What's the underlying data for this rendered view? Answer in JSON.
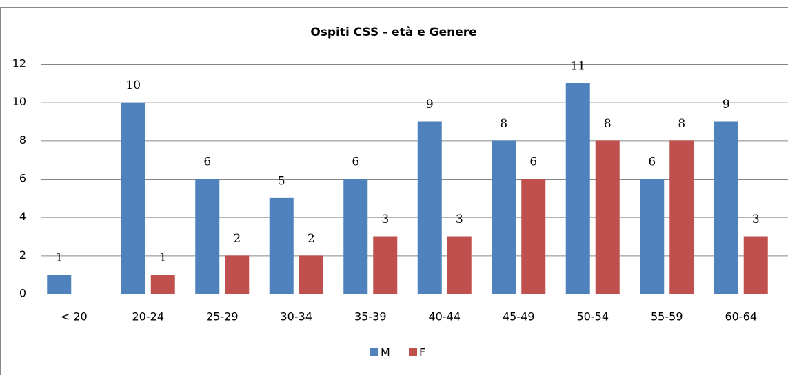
{
  "chart_data": {
    "type": "bar",
    "title": "Ospiti CSS - età e Genere",
    "categories": [
      "< 20",
      "20-24",
      "25-29",
      "30-34",
      "35-39",
      "40-44",
      "45-49",
      "50-54",
      "55-59",
      "60-64"
    ],
    "series": [
      {
        "name": "M",
        "color": "#4f81bd",
        "values": [
          1,
          10,
          6,
          5,
          6,
          9,
          8,
          11,
          6,
          9
        ]
      },
      {
        "name": "F",
        "color": "#c0504d",
        "values": [
          null,
          1,
          2,
          2,
          3,
          3,
          6,
          8,
          8,
          3
        ]
      }
    ],
    "ylim": [
      0,
      12
    ],
    "yticks": [
      0,
      2,
      4,
      6,
      8,
      10,
      12
    ],
    "grid": true,
    "legend": "bottom"
  }
}
